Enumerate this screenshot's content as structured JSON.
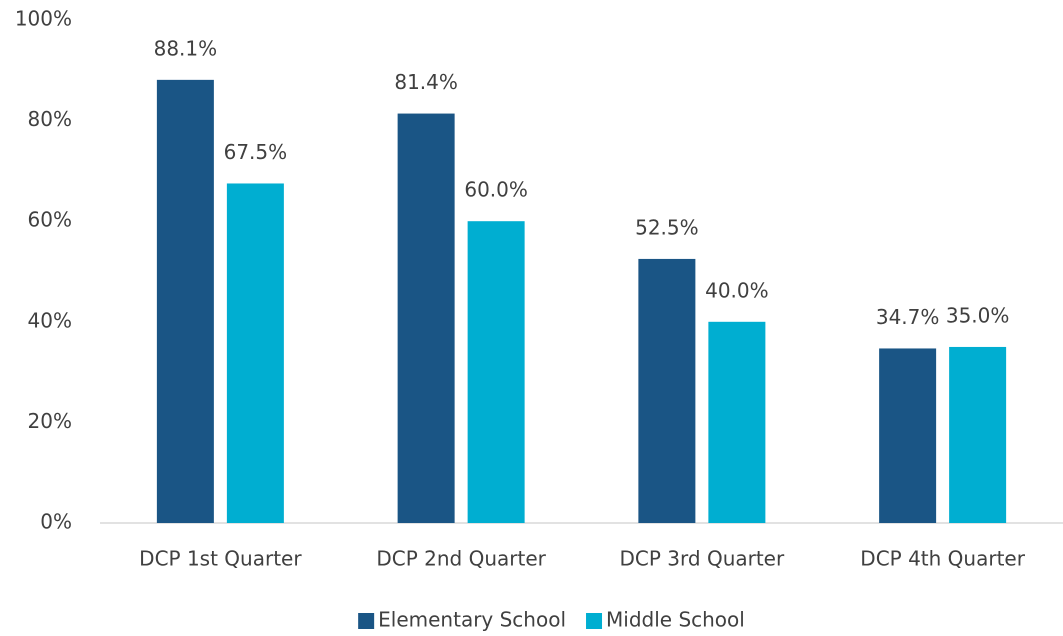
{
  "chart_data": {
    "type": "bar",
    "categories": [
      "DCP 1st Quarter",
      "DCP 2nd Quarter",
      "DCP 3rd Quarter",
      "DCP 4th Quarter"
    ],
    "series": [
      {
        "name": "Elementary School",
        "color": "#1a5585",
        "values": [
          88.1,
          81.4,
          52.5,
          34.7
        ],
        "value_labels": [
          "88.1%",
          "81.4%",
          "52.5%",
          "34.7%"
        ]
      },
      {
        "name": "Middle School",
        "color": "#00aed1",
        "values": [
          67.5,
          60.0,
          40.0,
          35.0
        ],
        "value_labels": [
          "67.5%",
          "60.0%",
          "40.0%",
          "35.0%"
        ]
      }
    ],
    "ylim": [
      0,
      100
    ],
    "yticks": [
      {
        "value": 0,
        "label": "0%"
      },
      {
        "value": 20,
        "label": "20%"
      },
      {
        "value": 40,
        "label": "40%"
      },
      {
        "value": 60,
        "label": "60%"
      },
      {
        "value": 80,
        "label": "80%"
      },
      {
        "value": 100,
        "label": "100%"
      }
    ],
    "grid": false,
    "legend": "bottom"
  }
}
